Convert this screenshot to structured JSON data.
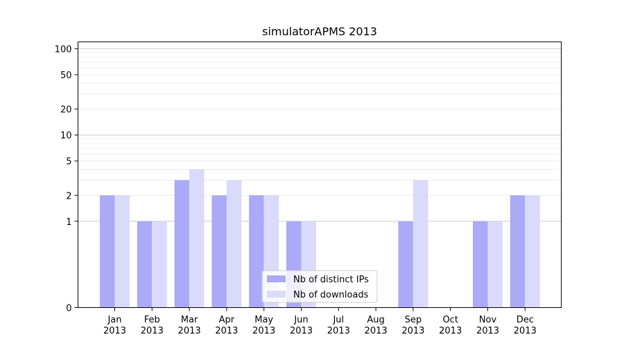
{
  "chart_data": {
    "type": "bar",
    "title": "simulatorAPMS 2013",
    "categories": [
      [
        "Jan",
        "2013"
      ],
      [
        "Feb",
        "2013"
      ],
      [
        "Mar",
        "2013"
      ],
      [
        "Apr",
        "2013"
      ],
      [
        "May",
        "2013"
      ],
      [
        "Jun",
        "2013"
      ],
      [
        "Jul",
        "2013"
      ],
      [
        "Aug",
        "2013"
      ],
      [
        "Sep",
        "2013"
      ],
      [
        "Oct",
        "2013"
      ],
      [
        "Nov",
        "2013"
      ],
      [
        "Dec",
        "2013"
      ]
    ],
    "series": [
      {
        "name": "Nb of distinct IPs",
        "color": "#aaaaf7",
        "values": [
          2,
          1,
          3,
          2,
          2,
          1,
          0,
          0,
          1,
          0,
          1,
          2
        ]
      },
      {
        "name": "Nb of downloads",
        "color": "#dadafa",
        "values": [
          2,
          1,
          4,
          3,
          2,
          1,
          0,
          0,
          3,
          0,
          1,
          2
        ]
      }
    ],
    "yscale": "symlog",
    "ylim": [
      0,
      120
    ],
    "yticks": [
      0,
      1,
      2,
      5,
      10,
      20,
      50,
      100
    ],
    "ytick_labels": [
      "0",
      "1",
      "2",
      "5",
      "10",
      "20",
      "50",
      "100"
    ],
    "grid": true,
    "legend_position": "lower-center"
  }
}
